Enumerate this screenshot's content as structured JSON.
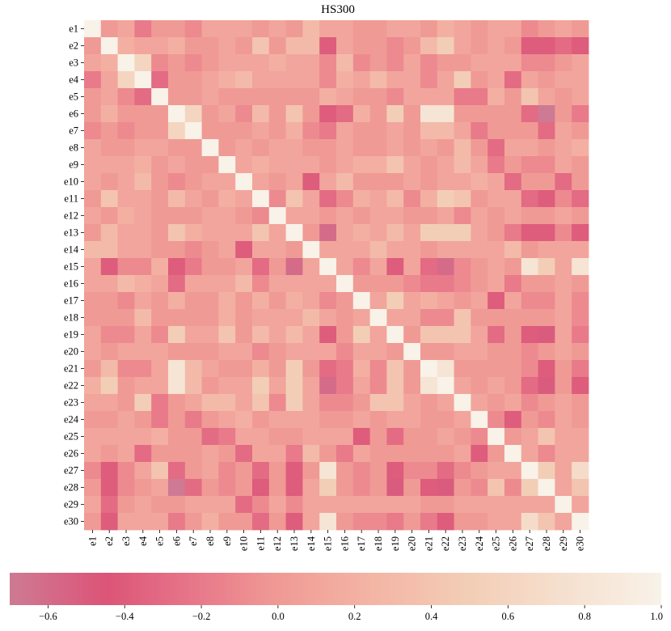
{
  "chart_data": {
    "type": "heatmap",
    "title": "HS300",
    "row_labels": [
      "e1",
      "e2",
      "e3",
      "e4",
      "e5",
      "e6",
      "e7",
      "e8",
      "e9",
      "e10",
      "e11",
      "e12",
      "e13",
      "e14",
      "e15",
      "e16",
      "e17",
      "e18",
      "e19",
      "e20",
      "e21",
      "e22",
      "e23",
      "e24",
      "e25",
      "e26",
      "e27",
      "e28",
      "e29",
      "e30"
    ],
    "col_labels": [
      "e1",
      "e2",
      "e3",
      "e4",
      "e5",
      "e6",
      "e7",
      "e8",
      "e9",
      "e10",
      "e11",
      "e12",
      "e13",
      "e14",
      "e15",
      "e16",
      "e17",
      "e18",
      "e19",
      "e20",
      "e21",
      "e22",
      "e23",
      "e24",
      "e25",
      "e26",
      "e27",
      "e28",
      "e29",
      "e30"
    ],
    "color_range": [
      -0.7,
      1.0
    ],
    "colorbar_orientation": "horizontal-bottom",
    "colorbar_ticks": [
      {
        "value": -0.6,
        "label": "−0.6"
      },
      {
        "value": -0.4,
        "label": "−0.4"
      },
      {
        "value": -0.2,
        "label": "−0.2"
      },
      {
        "value": 0.0,
        "label": "0.0"
      },
      {
        "value": 0.2,
        "label": "0.2"
      },
      {
        "value": 0.4,
        "label": "0.4"
      },
      {
        "value": 0.6,
        "label": "0.6"
      },
      {
        "value": 0.8,
        "label": "0.8"
      },
      {
        "value": 1.0,
        "label": "1.0"
      }
    ],
    "colormap_stops": [
      {
        "value": -0.7,
        "color": "#ce7a94"
      },
      {
        "value": -0.45,
        "color": "#dc5478"
      },
      {
        "value": -0.2,
        "color": "#e87a8a"
      },
      {
        "value": 0.0,
        "color": "#f09a95"
      },
      {
        "value": 0.2,
        "color": "#f3b0a2"
      },
      {
        "value": 0.5,
        "color": "#f3ceb6"
      },
      {
        "value": 1.0,
        "color": "#f8f2e8"
      }
    ],
    "values": [
      [
        1.0,
        0.0,
        0.1,
        -0.2,
        0.0,
        0.0,
        -0.1,
        0.1,
        0.1,
        0.1,
        0.0,
        0.1,
        0.0,
        0.3,
        0.1,
        0.1,
        0.0,
        0.0,
        0.1,
        0.1,
        0.0,
        0.2,
        0.1,
        0.0,
        0.1,
        0.1,
        -0.1,
        0.0,
        0.1,
        0.0
      ],
      [
        0.0,
        1.0,
        0.2,
        0.1,
        0.1,
        0.2,
        0.0,
        0.0,
        0.1,
        0.0,
        0.4,
        0.0,
        0.3,
        0.3,
        -0.4,
        0.1,
        0.0,
        0.0,
        -0.1,
        0.0,
        0.3,
        0.5,
        0.1,
        0.0,
        0.1,
        0.0,
        -0.4,
        -0.4,
        -0.3,
        -0.4
      ],
      [
        0.1,
        0.2,
        1.0,
        0.6,
        -0.1,
        0.0,
        -0.1,
        0.0,
        0.1,
        0.1,
        0.1,
        0.2,
        0.1,
        0.1,
        -0.1,
        0.3,
        -0.1,
        0.0,
        -0.1,
        0.1,
        -0.1,
        0.0,
        0.0,
        0.1,
        0.1,
        0.1,
        -0.1,
        -0.1,
        0.0,
        0.1
      ],
      [
        -0.2,
        0.1,
        0.6,
        1.0,
        -0.3,
        0.0,
        0.0,
        0.1,
        0.2,
        0.3,
        0.1,
        0.1,
        0.1,
        0.1,
        -0.1,
        0.2,
        0.1,
        0.3,
        0.1,
        0.1,
        -0.1,
        0.1,
        0.5,
        0.0,
        0.1,
        -0.3,
        0.1,
        0.0,
        0.1,
        0.1
      ],
      [
        0.0,
        0.1,
        -0.1,
        -0.3,
        1.0,
        0.0,
        0.0,
        0.1,
        0.0,
        0.0,
        0.0,
        0.0,
        0.0,
        0.0,
        0.2,
        0.1,
        0.0,
        0.0,
        -0.1,
        0.1,
        0.1,
        0.1,
        -0.2,
        -0.2,
        0.2,
        0.0,
        0.4,
        0.1,
        0.0,
        0.1
      ],
      [
        0.0,
        0.2,
        0.0,
        0.0,
        0.0,
        1.0,
        0.6,
        0.0,
        0.1,
        -0.1,
        0.3,
        0.0,
        0.4,
        0.0,
        -0.4,
        -0.3,
        0.2,
        0.0,
        0.5,
        0.0,
        0.8,
        0.8,
        0.0,
        0.0,
        0.0,
        0.0,
        -0.3,
        -0.7,
        0.0,
        -0.2
      ],
      [
        -0.1,
        0.0,
        -0.1,
        0.0,
        0.0,
        0.6,
        1.0,
        0.0,
        0.0,
        0.0,
        0.1,
        0.0,
        0.2,
        -0.1,
        -0.2,
        0.1,
        0.0,
        0.0,
        0.1,
        0.0,
        0.3,
        0.3,
        0.1,
        -0.2,
        0.0,
        0.0,
        0.0,
        -0.3,
        0.1,
        0.0
      ],
      [
        0.1,
        0.0,
        0.0,
        0.1,
        0.1,
        0.0,
        0.0,
        1.0,
        0.0,
        0.1,
        0.0,
        0.1,
        0.1,
        0.0,
        0.0,
        0.1,
        0.0,
        0.0,
        0.1,
        0.0,
        0.1,
        0.0,
        0.3,
        0.0,
        -0.3,
        0.1,
        0.1,
        0.0,
        0.1,
        0.2
      ],
      [
        0.1,
        0.1,
        0.1,
        0.2,
        0.0,
        0.1,
        0.0,
        0.0,
        1.0,
        0.1,
        0.2,
        0.1,
        0.1,
        0.1,
        0.0,
        0.1,
        0.2,
        0.2,
        0.4,
        0.1,
        0.0,
        0.1,
        0.3,
        0.1,
        -0.2,
        0.0,
        -0.1,
        -0.1,
        0.1,
        0.0
      ],
      [
        0.1,
        0.0,
        0.1,
        0.3,
        0.0,
        -0.1,
        0.0,
        0.1,
        0.1,
        1.0,
        0.1,
        0.0,
        0.1,
        -0.4,
        0.1,
        0.3,
        0.0,
        0.0,
        0.0,
        0.1,
        0.0,
        0.1,
        0.1,
        0.2,
        0.1,
        -0.3,
        0.0,
        0.0,
        -0.3,
        0.0
      ],
      [
        0.0,
        0.4,
        0.1,
        0.1,
        0.0,
        0.3,
        0.1,
        0.0,
        0.2,
        0.1,
        1.0,
        -0.1,
        0.4,
        0.1,
        -0.3,
        -0.1,
        0.2,
        0.1,
        0.3,
        -0.1,
        0.2,
        0.5,
        0.4,
        0.0,
        0.1,
        0.1,
        -0.3,
        -0.4,
        -0.1,
        -0.3
      ],
      [
        0.1,
        0.0,
        0.2,
        0.1,
        0.0,
        0.0,
        0.0,
        0.1,
        0.1,
        0.0,
        -0.1,
        1.0,
        0.1,
        0.1,
        0.0,
        0.1,
        0.0,
        0.1,
        0.1,
        0.0,
        0.0,
        0.1,
        -0.1,
        0.1,
        0.0,
        0.1,
        0.0,
        0.0,
        0.1,
        0.0
      ],
      [
        0.0,
        0.3,
        0.1,
        0.1,
        0.0,
        0.4,
        0.2,
        0.1,
        0.1,
        0.1,
        0.4,
        0.1,
        1.0,
        0.0,
        -0.6,
        0.1,
        0.2,
        0.1,
        0.3,
        0.1,
        0.5,
        0.5,
        0.5,
        0.1,
        0.0,
        -0.2,
        -0.4,
        -0.4,
        -0.1,
        -0.4
      ],
      [
        0.3,
        0.3,
        0.1,
        0.1,
        0.0,
        0.0,
        -0.1,
        0.0,
        0.1,
        -0.4,
        0.1,
        0.1,
        0.0,
        1.0,
        0.1,
        0.1,
        0.1,
        0.3,
        0.1,
        0.1,
        0.0,
        0.1,
        0.1,
        0.1,
        0.1,
        0.3,
        0.0,
        0.1,
        0.1,
        0.1
      ],
      [
        0.1,
        -0.4,
        -0.1,
        -0.1,
        0.2,
        -0.4,
        -0.2,
        0.0,
        0.0,
        0.1,
        -0.3,
        0.0,
        -0.6,
        0.1,
        1.0,
        0.1,
        -0.1,
        0.1,
        -0.4,
        0.1,
        -0.3,
        -0.6,
        -0.1,
        0.0,
        0.1,
        0.0,
        0.8,
        0.5,
        0.1,
        0.8
      ],
      [
        0.1,
        0.1,
        0.3,
        0.2,
        0.1,
        -0.3,
        0.1,
        0.1,
        0.1,
        0.3,
        -0.1,
        0.1,
        0.1,
        0.1,
        0.1,
        1.0,
        0.0,
        0.0,
        0.0,
        -0.1,
        -0.2,
        -0.2,
        -0.1,
        0.0,
        0.1,
        -0.2,
        0.0,
        0.0,
        0.1,
        0.0
      ],
      [
        0.0,
        0.0,
        -0.1,
        0.1,
        0.0,
        0.2,
        0.0,
        0.0,
        0.2,
        0.0,
        0.2,
        0.0,
        0.2,
        0.1,
        -0.1,
        0.0,
        1.0,
        0.1,
        0.5,
        0.1,
        0.2,
        0.1,
        0.0,
        0.1,
        -0.4,
        0.1,
        -0.1,
        -0.1,
        0.1,
        -0.1
      ],
      [
        0.0,
        0.0,
        0.0,
        0.3,
        0.0,
        0.0,
        0.0,
        0.0,
        0.2,
        0.0,
        0.1,
        0.1,
        0.1,
        0.3,
        0.1,
        0.0,
        0.1,
        1.0,
        0.1,
        0.1,
        -0.1,
        -0.1,
        0.4,
        0.0,
        0.0,
        0.0,
        0.0,
        0.0,
        0.1,
        -0.1
      ],
      [
        0.1,
        -0.1,
        -0.1,
        0.1,
        -0.1,
        0.5,
        0.1,
        0.1,
        0.4,
        0.0,
        0.3,
        0.1,
        0.3,
        0.1,
        -0.4,
        0.0,
        0.5,
        0.1,
        1.0,
        0.0,
        0.4,
        0.4,
        0.4,
        0.1,
        -0.3,
        0.0,
        -0.4,
        -0.5,
        0.1,
        -0.2
      ],
      [
        0.1,
        0.0,
        0.1,
        0.1,
        0.1,
        0.0,
        0.0,
        0.0,
        0.1,
        0.1,
        -0.1,
        0.0,
        0.1,
        0.1,
        0.1,
        -0.1,
        0.1,
        0.1,
        0.0,
        1.0,
        0.0,
        0.0,
        0.1,
        0.1,
        0.0,
        0.0,
        -0.1,
        0.0,
        0.1,
        0.0
      ],
      [
        0.0,
        0.3,
        -0.1,
        -0.1,
        0.1,
        0.8,
        0.3,
        0.1,
        0.0,
        0.0,
        0.2,
        0.0,
        0.5,
        0.0,
        -0.3,
        -0.2,
        0.2,
        -0.1,
        0.4,
        0.0,
        1.0,
        0.8,
        0.0,
        0.0,
        0.0,
        0.0,
        -0.1,
        -0.4,
        0.0,
        -0.2
      ],
      [
        0.2,
        0.5,
        0.0,
        0.1,
        0.1,
        0.8,
        0.3,
        0.0,
        0.1,
        0.1,
        0.5,
        0.1,
        0.5,
        0.1,
        -0.6,
        -0.2,
        0.1,
        -0.1,
        0.4,
        0.0,
        0.8,
        1.0,
        0.1,
        0.0,
        0.1,
        0.0,
        -0.3,
        -0.5,
        0.0,
        -0.4
      ],
      [
        0.1,
        0.1,
        0.0,
        0.5,
        -0.2,
        0.0,
        0.1,
        0.3,
        0.3,
        0.1,
        0.4,
        -0.1,
        0.5,
        0.1,
        -0.1,
        -0.1,
        0.0,
        0.4,
        0.4,
        0.1,
        0.0,
        0.1,
        1.0,
        0.1,
        0.0,
        0.1,
        -0.1,
        0.0,
        0.1,
        0.0
      ],
      [
        0.0,
        0.0,
        0.1,
        0.0,
        -0.2,
        0.0,
        -0.2,
        0.0,
        0.1,
        0.2,
        0.0,
        0.1,
        0.1,
        0.1,
        0.0,
        0.0,
        0.1,
        0.0,
        0.1,
        0.1,
        0.0,
        0.0,
        0.1,
        1.0,
        -0.1,
        -0.4,
        0.0,
        -0.1,
        0.1,
        0.0
      ],
      [
        0.1,
        0.1,
        0.1,
        0.1,
        0.2,
        0.0,
        0.0,
        -0.3,
        -0.2,
        0.1,
        0.1,
        0.0,
        0.0,
        0.1,
        0.1,
        0.1,
        -0.4,
        0.0,
        -0.3,
        0.0,
        0.0,
        0.1,
        0.0,
        -0.1,
        1.0,
        0.0,
        0.1,
        0.4,
        0.1,
        0.1
      ],
      [
        0.1,
        0.0,
        0.1,
        -0.3,
        0.0,
        0.0,
        0.0,
        0.1,
        0.0,
        -0.3,
        0.1,
        0.1,
        -0.2,
        0.3,
        0.0,
        -0.2,
        0.1,
        0.0,
        0.0,
        0.0,
        0.0,
        0.0,
        0.1,
        -0.4,
        0.0,
        1.0,
        0.1,
        -0.1,
        0.1,
        0.1
      ],
      [
        -0.1,
        -0.4,
        -0.1,
        0.1,
        0.4,
        -0.3,
        0.0,
        0.1,
        -0.1,
        0.0,
        -0.3,
        0.0,
        -0.4,
        0.0,
        0.8,
        0.0,
        -0.1,
        0.0,
        -0.4,
        -0.1,
        -0.1,
        -0.3,
        -0.1,
        0.0,
        0.1,
        0.1,
        1.0,
        0.5,
        0.1,
        0.7
      ],
      [
        0.0,
        -0.4,
        -0.1,
        0.0,
        0.1,
        -0.7,
        -0.3,
        0.0,
        -0.1,
        0.0,
        -0.4,
        0.0,
        -0.4,
        0.1,
        0.5,
        0.0,
        -0.1,
        0.0,
        -0.5,
        0.0,
        -0.4,
        -0.5,
        0.0,
        -0.1,
        0.4,
        -0.1,
        0.5,
        1.0,
        0.1,
        0.4
      ],
      [
        0.1,
        -0.3,
        0.0,
        0.1,
        0.0,
        0.0,
        0.1,
        0.1,
        0.1,
        -0.3,
        -0.1,
        0.1,
        -0.1,
        0.1,
        0.1,
        0.1,
        0.1,
        0.1,
        0.1,
        0.1,
        0.0,
        0.0,
        0.1,
        0.1,
        0.1,
        0.1,
        0.1,
        0.1,
        1.0,
        0.1
      ],
      [
        0.0,
        -0.4,
        0.1,
        0.1,
        0.1,
        -0.2,
        0.0,
        0.2,
        0.0,
        0.0,
        -0.3,
        0.0,
        -0.4,
        0.1,
        0.8,
        0.0,
        -0.1,
        -0.1,
        -0.2,
        0.0,
        -0.2,
        -0.4,
        0.0,
        0.0,
        0.1,
        0.1,
        0.7,
        0.4,
        0.1,
        1.0
      ]
    ]
  }
}
